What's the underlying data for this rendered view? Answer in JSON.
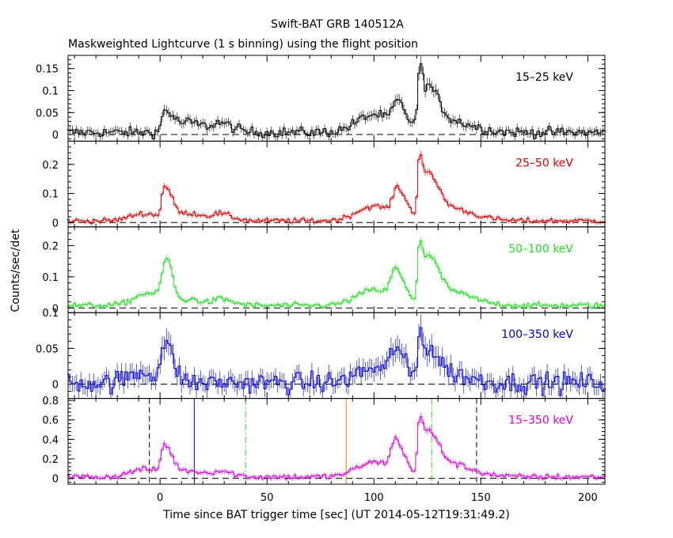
{
  "title": "Swift-BAT GRB 140512A",
  "subtitle": "Maskweighted Lightcurve (1 s binning) using the flight position",
  "colors": {
    "black": "#000000",
    "red": "#e00000",
    "green": "#22dd22",
    "blue": "#0000cc",
    "magenta": "#dd00dd",
    "orange": "#ff8000"
  },
  "chart_data": {
    "type": "line",
    "title": "Swift-BAT GRB 140512A",
    "subtitle": "Maskweighted Lightcurve (1 s binning) using the flight position",
    "xlabel": "Time since BAT trigger time [sec] (UT 2014-05-12T19:31:49.2)",
    "ylabel": "Counts/sec/det",
    "xlim": [
      -43,
      208
    ],
    "x_ticks": [
      0,
      50,
      100,
      150,
      200
    ],
    "panels": [
      {
        "label": "15–25 keV",
        "color": "#000000",
        "ylim": [
          -0.015,
          0.18
        ],
        "y_ticks": [
          0,
          0.05,
          0.1,
          0.15
        ],
        "y_tick_labels": [
          "0",
          "0.05",
          "0.1",
          "0.15"
        ],
        "noise": 0.008,
        "baseline": 0.005,
        "components": [
          {
            "t": 2,
            "amp": 0.05,
            "rise": 1.2,
            "decay": 5
          },
          {
            "t": 14,
            "amp": 0.02,
            "rise": 3,
            "decay": 8
          },
          {
            "t": 28,
            "amp": 0.018,
            "rise": 3,
            "decay": 6
          },
          {
            "t": 100,
            "amp": 0.04,
            "rise": 8,
            "decay": 10
          },
          {
            "t": 111,
            "amp": 0.05,
            "rise": 2,
            "decay": 4
          },
          {
            "t": 121.5,
            "amp": 0.14,
            "rise": 1,
            "decay": 2
          },
          {
            "t": 126,
            "amp": 0.08,
            "rise": 1.5,
            "decay": 4
          },
          {
            "t": 132,
            "amp": 0.03,
            "rise": 5,
            "decay": 12
          }
        ]
      },
      {
        "label": "25–50 keV",
        "color": "#e00000",
        "ylim": [
          -0.015,
          0.28
        ],
        "y_ticks": [
          0,
          0.1,
          0.2
        ],
        "y_tick_labels": [
          "0",
          "0.1",
          "0.2"
        ],
        "noise": 0.006,
        "baseline": 0.006,
        "components": [
          {
            "t": 2,
            "amp": 0.11,
            "rise": 1.2,
            "decay": 4
          },
          {
            "t": -8,
            "amp": 0.025,
            "rise": 6,
            "decay": 8
          },
          {
            "t": 14,
            "amp": 0.025,
            "rise": 3,
            "decay": 8
          },
          {
            "t": 28,
            "amp": 0.02,
            "rise": 3,
            "decay": 6
          },
          {
            "t": 100,
            "amp": 0.05,
            "rise": 8,
            "decay": 10
          },
          {
            "t": 111,
            "amp": 0.09,
            "rise": 2,
            "decay": 4
          },
          {
            "t": 121.5,
            "amp": 0.22,
            "rise": 1,
            "decay": 2
          },
          {
            "t": 126,
            "amp": 0.12,
            "rise": 1.5,
            "decay": 4
          },
          {
            "t": 132,
            "amp": 0.05,
            "rise": 5,
            "decay": 12
          }
        ]
      },
      {
        "label": "50–100 keV",
        "color": "#22dd22",
        "ylim": [
          -0.015,
          0.26
        ],
        "y_ticks": [
          0,
          0.1,
          0.2
        ],
        "y_tick_labels": [
          "0",
          "0.1",
          "0.2"
        ],
        "noise": 0.006,
        "baseline": 0.008,
        "components": [
          {
            "t": 3,
            "amp": 0.14,
            "rise": 2,
            "decay": 3
          },
          {
            "t": -6,
            "amp": 0.04,
            "rise": 6,
            "decay": 6
          },
          {
            "t": 14,
            "amp": 0.02,
            "rise": 3,
            "decay": 6
          },
          {
            "t": 28,
            "amp": 0.02,
            "rise": 3,
            "decay": 6
          },
          {
            "t": 100,
            "amp": 0.05,
            "rise": 8,
            "decay": 10
          },
          {
            "t": 110,
            "amp": 0.09,
            "rise": 2,
            "decay": 4
          },
          {
            "t": 121.5,
            "amp": 0.2,
            "rise": 1,
            "decay": 2
          },
          {
            "t": 126,
            "amp": 0.12,
            "rise": 1.5,
            "decay": 4
          },
          {
            "t": 132,
            "amp": 0.05,
            "rise": 5,
            "decay": 12
          }
        ]
      },
      {
        "label": "100–350 keV",
        "color": "#0000cc",
        "ylim": [
          -0.02,
          0.1
        ],
        "y_ticks": [
          0,
          0.05,
          0.1
        ],
        "y_tick_labels": [
          "0",
          "0.05",
          "0.1"
        ],
        "noise": 0.01,
        "baseline": 0.002,
        "components": [
          {
            "t": 2,
            "amp": 0.05,
            "rise": 1.5,
            "decay": 4
          },
          {
            "t": -8,
            "amp": 0.015,
            "rise": 6,
            "decay": 8
          },
          {
            "t": 100,
            "amp": 0.02,
            "rise": 8,
            "decay": 10
          },
          {
            "t": 110,
            "amp": 0.04,
            "rise": 2,
            "decay": 4
          },
          {
            "t": 121.5,
            "amp": 0.07,
            "rise": 1,
            "decay": 2
          },
          {
            "t": 126,
            "amp": 0.035,
            "rise": 1.5,
            "decay": 4
          },
          {
            "t": 132,
            "amp": 0.015,
            "rise": 5,
            "decay": 10
          }
        ]
      },
      {
        "label": "15–350 keV",
        "color": "#dd00dd",
        "ylim": [
          -0.06,
          0.82
        ],
        "y_ticks": [
          0,
          0.2,
          0.4,
          0.6,
          0.8
        ],
        "y_tick_labels": [
          "0",
          "0.2",
          "0.4",
          "0.6",
          "0.8"
        ],
        "noise": 0.02,
        "baseline": 0.015,
        "components": [
          {
            "t": 2,
            "amp": 0.3,
            "rise": 1.5,
            "decay": 4
          },
          {
            "t": -8,
            "amp": 0.08,
            "rise": 6,
            "decay": 8
          },
          {
            "t": 14,
            "amp": 0.06,
            "rise": 3,
            "decay": 8
          },
          {
            "t": 28,
            "amp": 0.05,
            "rise": 3,
            "decay": 6
          },
          {
            "t": 100,
            "amp": 0.15,
            "rise": 8,
            "decay": 10
          },
          {
            "t": 110,
            "amp": 0.3,
            "rise": 2,
            "decay": 4
          },
          {
            "t": 121.5,
            "amp": 0.6,
            "rise": 1,
            "decay": 2
          },
          {
            "t": 126,
            "amp": 0.35,
            "rise": 1.5,
            "decay": 4
          },
          {
            "t": 132,
            "amp": 0.15,
            "rise": 5,
            "decay": 12
          }
        ],
        "vlines": [
          {
            "x": -5,
            "color": "#000000",
            "style": "dashed"
          },
          {
            "x": 16,
            "color": "#0000cc",
            "style": "solid"
          },
          {
            "x": 40,
            "color": "#22dd22",
            "style": "dashdot"
          },
          {
            "x": 87,
            "color": "#ff8000",
            "style": "solid"
          },
          {
            "x": 127,
            "color": "#22dd22",
            "style": "dashdot"
          },
          {
            "x": 148,
            "color": "#000000",
            "style": "dashed"
          }
        ]
      }
    ]
  }
}
